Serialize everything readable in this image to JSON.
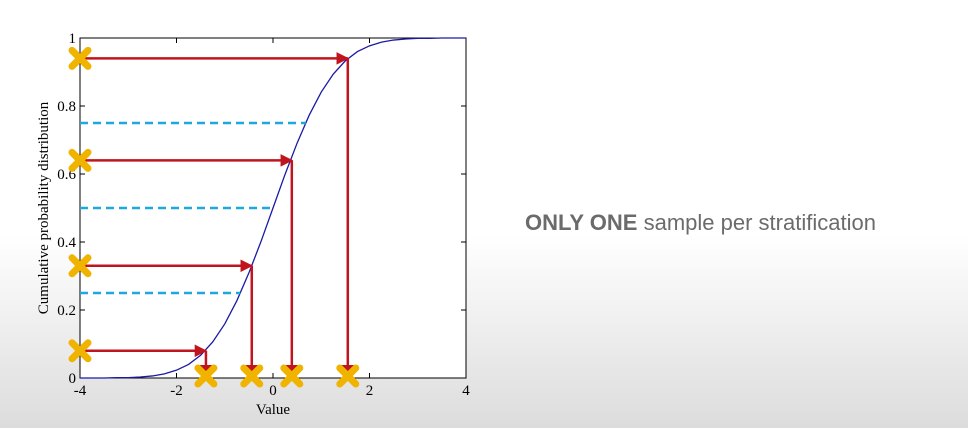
{
  "chart_data": {
    "type": "line",
    "xlabel": "Value",
    "ylabel": "Cumulative probability distribution",
    "xlim": [
      -4,
      4
    ],
    "xticks": [
      -4,
      -2,
      0,
      2,
      4
    ],
    "ylim": [
      0,
      1
    ],
    "yticks": [
      0,
      0.2,
      0.4,
      0.6,
      0.8,
      1
    ],
    "x": [
      -4,
      -3.75,
      -3.5,
      -3.25,
      -3,
      -2.75,
      -2.5,
      -2.25,
      -2,
      -1.75,
      -1.5,
      -1.25,
      -1,
      -0.75,
      -0.5,
      -0.25,
      0,
      0.25,
      0.5,
      0.75,
      1,
      1.25,
      1.5,
      1.75,
      2,
      2.25,
      2.5,
      2.75,
      3,
      3.25,
      3.5,
      3.75,
      4
    ],
    "series": [
      {
        "color": "#1a1aa6",
        "values": [
          0,
          0,
          0,
          0.001,
          0.001,
          0.003,
          0.006,
          0.012,
          0.023,
          0.04,
          0.067,
          0.106,
          0.159,
          0.227,
          0.309,
          0.401,
          0.5,
          0.599,
          0.691,
          0.773,
          0.841,
          0.894,
          0.933,
          0.96,
          0.977,
          0.988,
          0.994,
          0.997,
          0.999,
          0.999,
          1,
          1,
          1
        ]
      }
    ],
    "strata": {
      "color": "#1fa8e0",
      "values": [
        0.25,
        0.5,
        0.75
      ]
    },
    "samples": {
      "color": "#c0141e",
      "marker_color": "#f0b400",
      "x": [
        -1.39,
        -0.44,
        0.39,
        1.55
      ],
      "y": [
        0.08,
        0.33,
        0.64,
        0.94
      ]
    }
  },
  "caption": {
    "bold": "ONLY ONE",
    "rest": "sample per stratification"
  }
}
